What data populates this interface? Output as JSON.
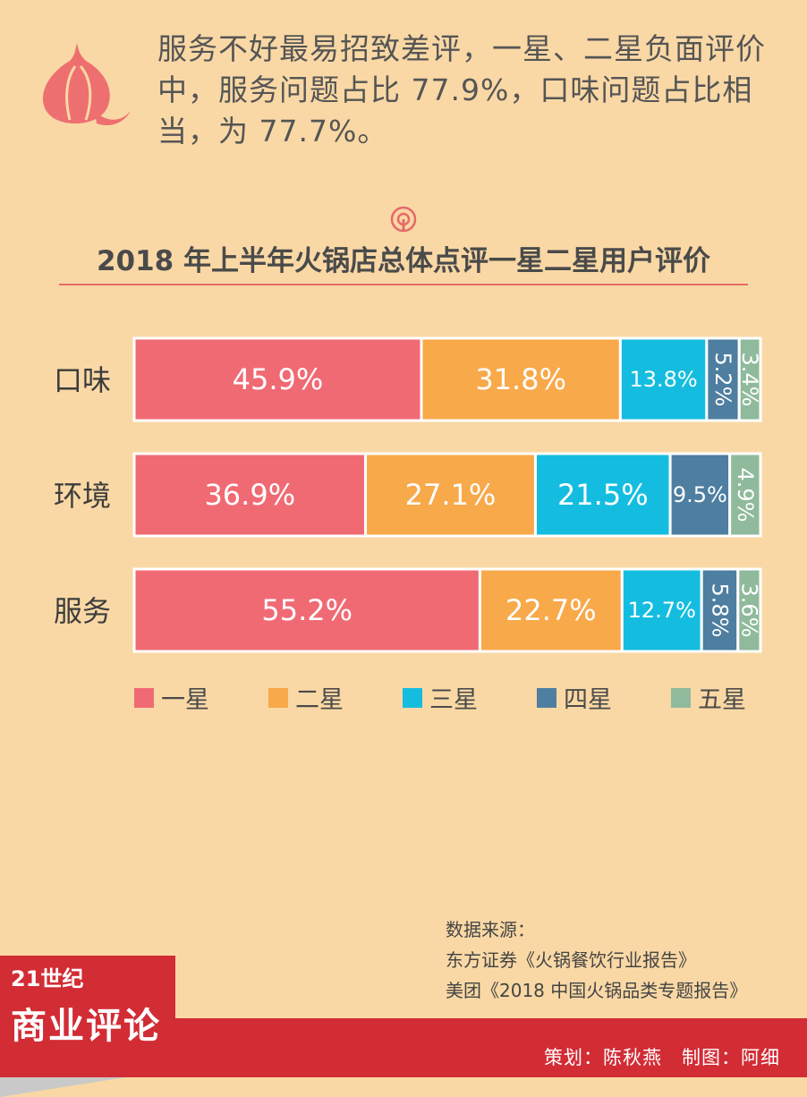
{
  "header": {
    "text": "服务不好最易招致差评，一星、二星负面评价中，服务问题占比 77.9%，口味问题占比相当，为 77.7%。"
  },
  "chart_data": {
    "type": "bar",
    "stacked": true,
    "horizontal": true,
    "title": "2018 年上半年火锅店总体点评一星二星用户评价",
    "categories": [
      "口味",
      "环境",
      "服务"
    ],
    "series": [
      {
        "name": "一星",
        "values": [
          45.9,
          36.9,
          55.2
        ],
        "color": "#F06A74",
        "labels": [
          "45.9%",
          "36.9%",
          "55.2%"
        ]
      },
      {
        "name": "二星",
        "values": [
          31.8,
          27.1,
          22.7
        ],
        "color": "#F8A94A",
        "labels": [
          "31.8%",
          "27.1%",
          "22.7%"
        ]
      },
      {
        "name": "三星",
        "values": [
          13.8,
          21.5,
          12.7
        ],
        "color": "#14BDE0",
        "labels": [
          "13.8%",
          "21.5%",
          "12.7%"
        ]
      },
      {
        "name": "四星",
        "values": [
          5.2,
          9.5,
          5.8
        ],
        "color": "#4E7EA0",
        "labels": [
          "5.2%",
          "9.5%",
          "5.8%"
        ]
      },
      {
        "name": "五星",
        "values": [
          3.4,
          4.9,
          3.6
        ],
        "color": "#8FBA9B",
        "labels": [
          "3.4%",
          "4.9%",
          "3.6%"
        ]
      }
    ]
  },
  "legend": [
    "一星",
    "二星",
    "三星",
    "四星",
    "五星"
  ],
  "sources": {
    "heading": "数据来源：",
    "line1": "东方证券《火锅餐饮行业报告》",
    "line2": "美团《2018 中国火锅品类专题报告》"
  },
  "logo": {
    "small": "21世纪",
    "big": "商业评论"
  },
  "credits": "策划：陈秋燕　制图：阿细"
}
